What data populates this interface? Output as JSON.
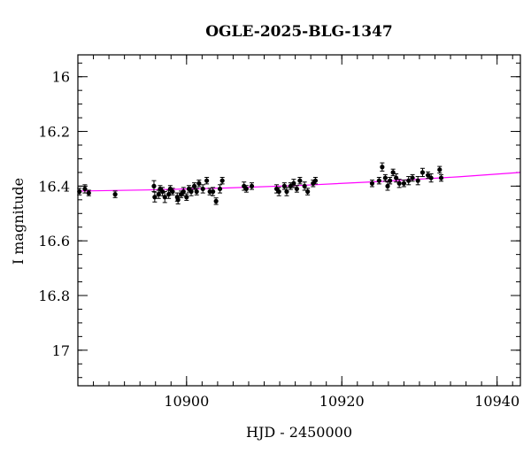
{
  "chart_data": {
    "type": "scatter",
    "title": "OGLE-2025-BLG-1347",
    "xlabel": "HJD - 2450000",
    "ylabel": "I magnitude",
    "xlim": [
      10886,
      10943
    ],
    "ylim": [
      17.13,
      15.92
    ],
    "y_inverted": true,
    "grid": false,
    "x_major_ticks": [
      10900,
      10920,
      10940
    ],
    "x_tick_labels": [
      "10900",
      "10920",
      "10940"
    ],
    "x_minor_step": 2,
    "y_major_ticks": [
      16.0,
      16.2,
      16.4,
      16.6,
      16.8,
      17.0
    ],
    "y_tick_labels": [
      "16",
      "16.2",
      "16.4",
      "16.6",
      "16.8",
      "17"
    ],
    "y_minor_step": 0.05,
    "model_color": "#ff00ff",
    "point_color": "#000000",
    "model": {
      "x": [
        10886,
        10895,
        10905,
        10915,
        10925,
        10935,
        10943
      ],
      "y": [
        16.418,
        16.414,
        16.407,
        16.397,
        16.383,
        16.366,
        16.35
      ]
    },
    "series": [
      {
        "x": [
          10886.2,
          10886.9,
          10887.4,
          10890.8,
          10895.8,
          10895.9,
          10896.4,
          10896.6,
          10896.9,
          10897.2,
          10897.7,
          10897.9,
          10898.2,
          10898.8,
          10898.9,
          10899.3,
          10899.6,
          10900.0,
          10900.3,
          10900.6,
          10901.0,
          10901.3,
          10901.6,
          10902.1,
          10902.6,
          10903.0,
          10903.4,
          10903.8,
          10904.3,
          10904.6,
          10907.4,
          10907.7,
          10908.4,
          10911.6,
          10911.9,
          10912.6,
          10912.9,
          10913.4,
          10913.8,
          10914.2,
          10914.6,
          10915.2,
          10915.6,
          10916.3,
          10916.6,
          10923.9,
          10924.8,
          10925.2,
          10925.6,
          10925.9,
          10926.2,
          10926.6,
          10927.0,
          10927.4,
          10928.0,
          10928.6,
          10929.1,
          10929.8,
          10930.4,
          10931.1,
          10931.5,
          10932.6,
          10932.8
        ],
        "y": [
          16.42,
          16.41,
          16.425,
          16.43,
          16.4,
          16.44,
          16.43,
          16.41,
          16.42,
          16.44,
          16.43,
          16.41,
          16.42,
          16.44,
          16.45,
          16.43,
          16.42,
          16.44,
          16.41,
          16.42,
          16.4,
          16.42,
          16.39,
          16.41,
          16.38,
          16.42,
          16.42,
          16.455,
          16.41,
          16.38,
          16.4,
          16.41,
          16.4,
          16.41,
          16.42,
          16.4,
          16.42,
          16.4,
          16.39,
          16.41,
          16.38,
          16.4,
          16.42,
          16.39,
          16.38,
          16.39,
          16.38,
          16.33,
          16.37,
          16.4,
          16.38,
          16.35,
          16.37,
          16.39,
          16.39,
          16.38,
          16.37,
          16.38,
          16.35,
          16.36,
          16.37,
          16.34,
          16.37
        ],
        "err": [
          0.012,
          0.015,
          0.01,
          0.012,
          0.02,
          0.018,
          0.015,
          0.012,
          0.015,
          0.02,
          0.015,
          0.012,
          0.012,
          0.015,
          0.015,
          0.012,
          0.015,
          0.012,
          0.012,
          0.015,
          0.012,
          0.012,
          0.012,
          0.015,
          0.012,
          0.012,
          0.015,
          0.012,
          0.015,
          0.012,
          0.015,
          0.012,
          0.012,
          0.015,
          0.015,
          0.012,
          0.015,
          0.012,
          0.015,
          0.012,
          0.012,
          0.015,
          0.012,
          0.012,
          0.012,
          0.012,
          0.012,
          0.015,
          0.012,
          0.015,
          0.012,
          0.012,
          0.015,
          0.015,
          0.012,
          0.015,
          0.012,
          0.015,
          0.015,
          0.012,
          0.015,
          0.012,
          0.012
        ]
      }
    ]
  }
}
